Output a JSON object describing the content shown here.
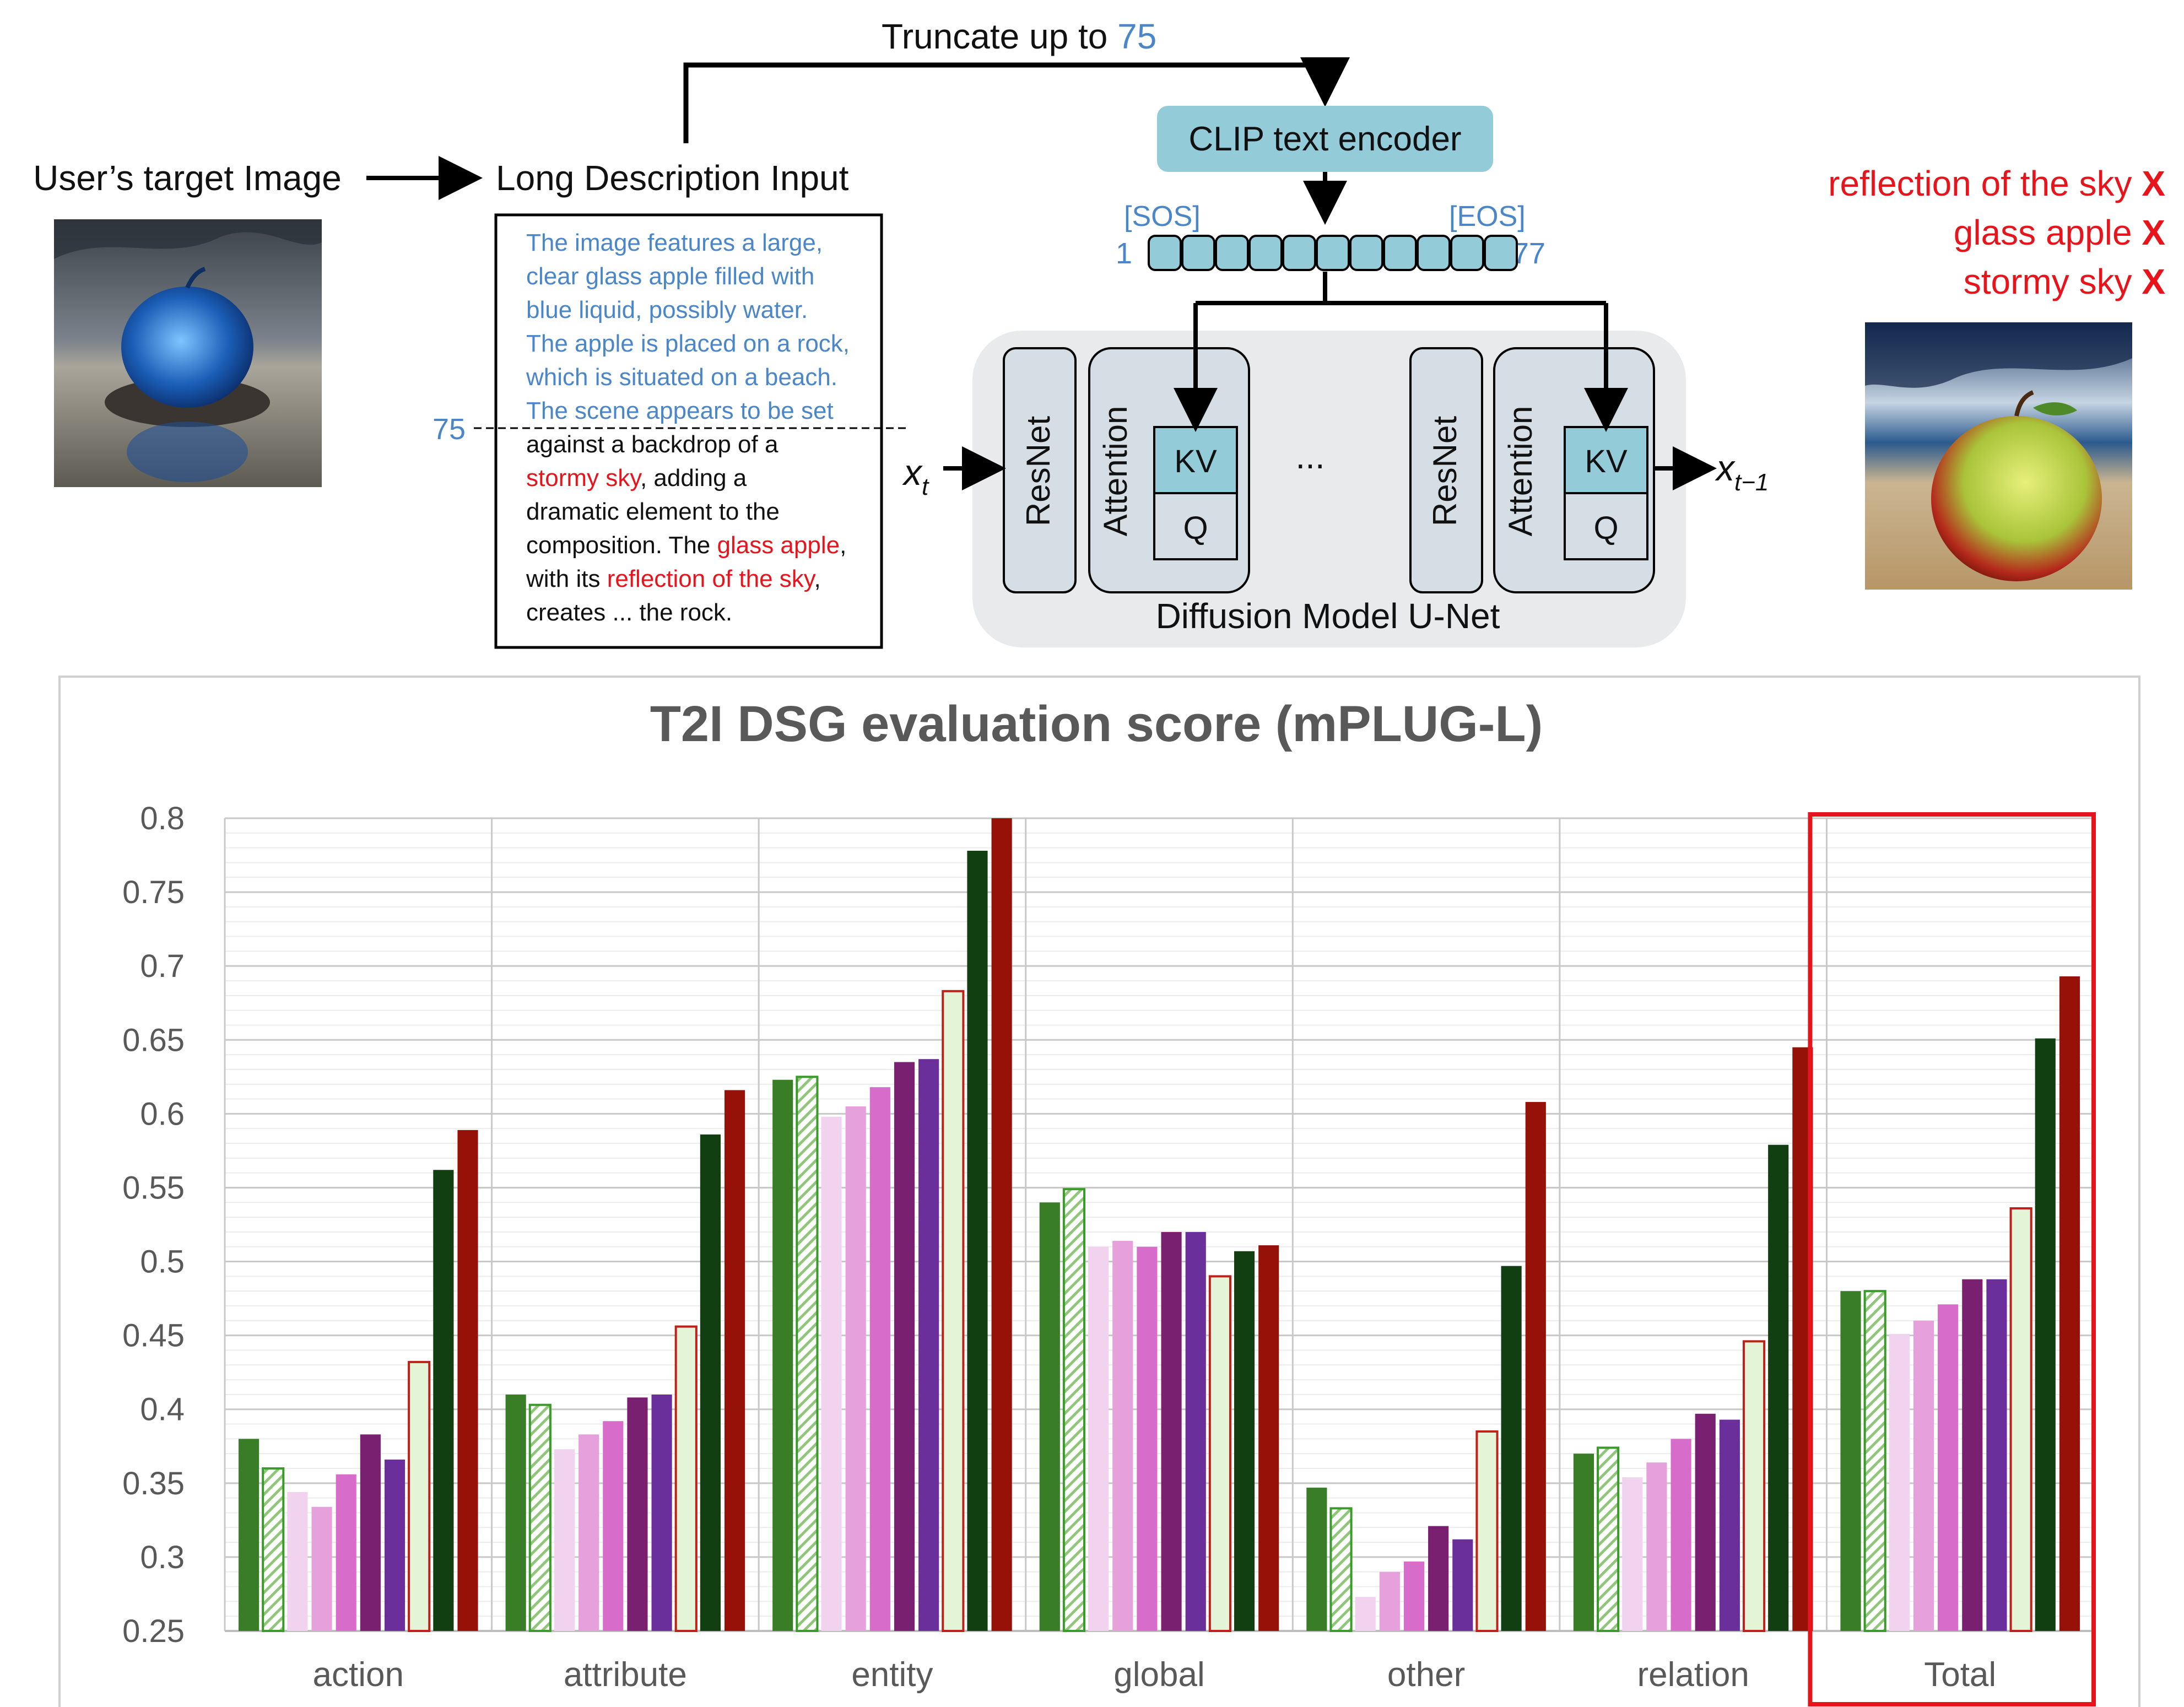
{
  "diagram": {
    "truncate_label": "Truncate up to",
    "truncate_value": "75",
    "user_target_label": "User’s target Image",
    "long_desc_label": "Long Description Input",
    "desc_lines": [
      [
        {
          "text": "The image features a large,",
          "color": "blue"
        }
      ],
      [
        {
          "text": "clear glass apple filled with",
          "color": "blue"
        }
      ],
      [
        {
          "text": "blue liquid, possibly water.",
          "color": "blue"
        }
      ],
      [
        {
          "text": "The apple is placed on a rock,",
          "color": "blue"
        }
      ],
      [
        {
          "text": "which is situated on a beach.",
          "color": "blue"
        }
      ],
      [
        {
          "text": "The scene appears to be set",
          "color": "blue"
        }
      ],
      [
        {
          "text": "against a backdrop of a",
          "color": "black"
        }
      ],
      [
        {
          "text": "stormy sky",
          "color": "red"
        },
        {
          "text": ", adding a",
          "color": "black"
        }
      ],
      [
        {
          "text": "dramatic element to the",
          "color": "black"
        }
      ],
      [
        {
          "text": "composition. The ",
          "color": "black"
        },
        {
          "text": "glass apple",
          "color": "red"
        },
        {
          "text": ",",
          "color": "black"
        }
      ],
      [
        {
          "text": "with its ",
          "color": "black"
        },
        {
          "text": "reflection of the sky",
          "color": "red"
        },
        {
          "text": ",",
          "color": "black"
        }
      ],
      [
        {
          "text": "creates ... the rock.",
          "color": "black"
        }
      ]
    ],
    "cut_label": "75",
    "clip_label": "CLIP text encoder",
    "sos_label": "[SOS]",
    "eos_label": "[EOS]",
    "tok_start": "1",
    "tok_end": "77",
    "resnet_label": "ResNet",
    "attention_label": "Attention",
    "kv_label": "KV",
    "q_label": "Q",
    "ellipsis": "...",
    "x_t": "x",
    "x_t_sub": "t",
    "x_t1": "x",
    "x_t1_sub": "t−1",
    "unet_label": "Diffusion Model U-Net",
    "missing": [
      {
        "text": "reflection of the sky",
        "mark": "X"
      },
      {
        "text": "glass apple",
        "mark": "X"
      },
      {
        "text": "stormy sky",
        "mark": "X"
      }
    ],
    "colors": {
      "blue": "#4a86c8",
      "red": "#e8141c",
      "black": "#111111",
      "clip_fill": "#93cbd9",
      "unet_bg": "#e8eaec",
      "block_fill": "#d6dee5"
    }
  },
  "chart_data": {
    "type": "bar",
    "title": "T2I DSG evaluation score (mPLUG-L)",
    "xlabel": "",
    "ylabel": "",
    "ylim": [
      0.25,
      0.8
    ],
    "yticks": [
      "0.25",
      "0.3",
      "0.35",
      "0.4",
      "0.45",
      "0.5",
      "0.55",
      "0.6",
      "0.65",
      "0.7",
      "0.75",
      "0.8"
    ],
    "categories": [
      "action",
      "attribute",
      "entity",
      "global",
      "other",
      "relation",
      "Total"
    ],
    "highlight_category": "Total",
    "series": [
      {
        "color": "#3a7d27",
        "style": "solid",
        "values": [
          0.38,
          0.41,
          0.623,
          0.54,
          0.347,
          0.37,
          0.48
        ]
      },
      {
        "color": "#3a9a2a",
        "style": "hatch",
        "values": [
          0.36,
          0.403,
          0.625,
          0.549,
          0.333,
          0.374,
          0.48
        ]
      },
      {
        "color": "#f2d3ef",
        "style": "solid",
        "values": [
          0.344,
          0.373,
          0.598,
          0.51,
          0.273,
          0.354,
          0.451
        ]
      },
      {
        "color": "#e6a0dc",
        "style": "solid",
        "values": [
          0.334,
          0.383,
          0.605,
          0.514,
          0.29,
          0.364,
          0.46
        ]
      },
      {
        "color": "#d86ccb",
        "style": "solid",
        "values": [
          0.356,
          0.392,
          0.618,
          0.51,
          0.297,
          0.38,
          0.471
        ]
      },
      {
        "color": "#7a2070",
        "style": "solid",
        "values": [
          0.383,
          0.408,
          0.635,
          0.52,
          0.321,
          0.397,
          0.488
        ]
      },
      {
        "color": "#6a2f9a",
        "style": "solid",
        "values": [
          0.366,
          0.41,
          0.637,
          0.52,
          0.312,
          0.393,
          0.488
        ]
      },
      {
        "color": "#e4f5d7",
        "style": "outline",
        "values": [
          0.432,
          0.456,
          0.683,
          0.49,
          0.385,
          0.446,
          0.536
        ]
      },
      {
        "color": "#123f12",
        "style": "solid",
        "values": [
          0.562,
          0.586,
          0.778,
          0.507,
          0.497,
          0.579,
          0.651
        ]
      },
      {
        "color": "#961209",
        "style": "solid",
        "values": [
          0.589,
          0.616,
          0.8,
          0.511,
          0.608,
          0.645,
          0.693
        ]
      }
    ],
    "grid": true,
    "legend": "none"
  }
}
